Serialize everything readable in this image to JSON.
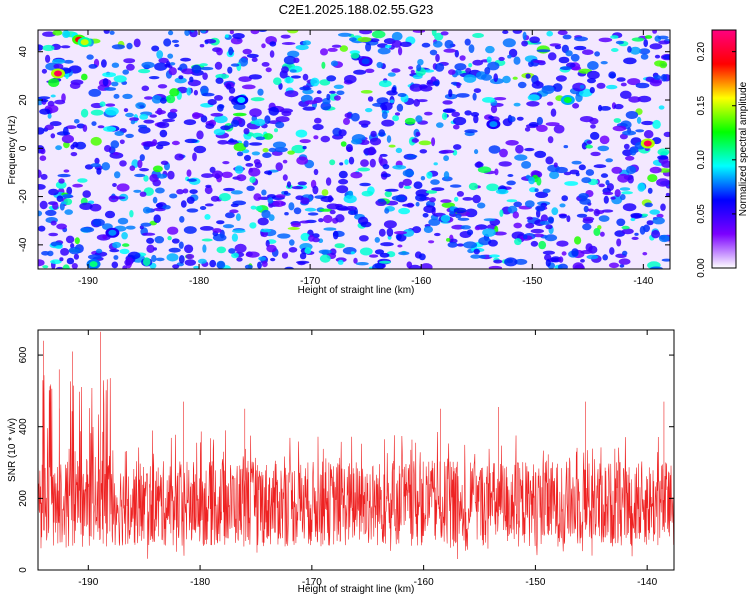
{
  "title": "C2E1.2025.188.02.55.G23",
  "chart_data": [
    {
      "type": "heatmap",
      "xlabel": "Height of straight line (km)",
      "ylabel": "Frequency (Hz)",
      "xlim": [
        -194.5,
        -137.6
      ],
      "ylim": [
        -50,
        49
      ],
      "x_ticks": [
        -190,
        -180,
        -170,
        -160,
        -150,
        -140
      ],
      "y_ticks": [
        -40,
        -20,
        0,
        20,
        40
      ],
      "x_tick_labels": [
        "-190",
        "-180",
        "-170",
        "-160",
        "-150",
        "-140"
      ],
      "y_tick_labels": [
        "-40",
        "-20",
        "0",
        "20",
        "40"
      ],
      "colorbar": {
        "label": "Normalized spectral amplitude",
        "range": [
          0.0,
          0.22
        ],
        "ticks": [
          0.0,
          0.05,
          0.1,
          0.15,
          0.2
        ],
        "tick_labels": [
          "0.00",
          "0.05",
          "0.10",
          "0.15",
          "0.20"
        ],
        "colormap": [
          "#ffffff",
          "#7b00ff",
          "#0000ff",
          "#00ffff",
          "#00ff00",
          "#ffff00",
          "#ff0000",
          "#ff0080"
        ]
      },
      "hotspots": [
        {
          "x": -192.7,
          "y": 31,
          "value": 0.21
        },
        {
          "x": -190.8,
          "y": 45,
          "value": 0.19
        },
        {
          "x": -190.3,
          "y": 44,
          "value": 0.15
        },
        {
          "x": -139.6,
          "y": 2,
          "value": 0.21
        },
        {
          "x": -146.8,
          "y": 20,
          "value": 0.12
        },
        {
          "x": -189.5,
          "y": -48,
          "value": 0.11
        },
        {
          "x": -187.8,
          "y": -35,
          "value": 0.08
        },
        {
          "x": -176.2,
          "y": 20,
          "value": 0.09
        },
        {
          "x": -153.5,
          "y": 10,
          "value": 0.08
        },
        {
          "x": -165.0,
          "y": 36,
          "value": 0.07
        }
      ]
    },
    {
      "type": "line",
      "xlabel": "Height of straight line (km)",
      "ylabel": "SNR (10 * v/v)",
      "xlim": [
        -194.5,
        -137.6
      ],
      "ylim": [
        0,
        670
      ],
      "x_ticks": [
        -190,
        -180,
        -170,
        -160,
        -150,
        -140
      ],
      "y_ticks": [
        0,
        200,
        400,
        600
      ],
      "x_tick_labels": [
        "-190",
        "-180",
        "-170",
        "-160",
        "-150",
        "-140"
      ],
      "y_tick_labels": [
        "0",
        "200",
        "400",
        "600"
      ],
      "series": [
        {
          "color": "#ee2222",
          "base_mean": 185,
          "base_spread": 120,
          "peak_max": 670
        }
      ],
      "notable_peaks": [
        {
          "x": -194.0,
          "y": 640
        },
        {
          "x": -191.4,
          "y": 610
        },
        {
          "x": -188.9,
          "y": 665
        },
        {
          "x": -192.6,
          "y": 560
        },
        {
          "x": -181.5,
          "y": 470
        },
        {
          "x": -176.0,
          "y": 450
        },
        {
          "x": -158.5,
          "y": 450
        },
        {
          "x": -153.3,
          "y": 455
        },
        {
          "x": -145.5,
          "y": 470
        },
        {
          "x": -138.5,
          "y": 470
        }
      ],
      "grid": false
    }
  ]
}
